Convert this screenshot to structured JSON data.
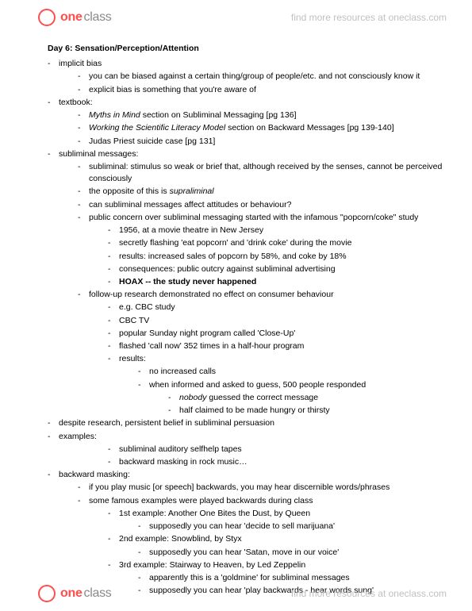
{
  "brand": {
    "one": "one",
    "class": "class",
    "find": "find more resources at oneclass.com"
  },
  "title": "Day 6: Sensation/Perception/Attention",
  "notes": [
    {
      "lvl": 0,
      "t": "implicit bias"
    },
    {
      "lvl": 1,
      "t": "you can be biased against a certain thing/group of people/etc. and not consciously know it"
    },
    {
      "lvl": 1,
      "t": "explicit bias is something that you're aware of"
    },
    {
      "lvl": 0,
      "t": "textbook:"
    },
    {
      "lvl": 1,
      "pre_i": "Myths in Mind",
      "t": " section on Subliminal Messaging [pg 136]"
    },
    {
      "lvl": 1,
      "pre_i": "Working the Scientific Literacy Model",
      "t": " section on Backward Messages [pg 139-140]"
    },
    {
      "lvl": 1,
      "t": "Judas Priest suicide case [pg 131]"
    },
    {
      "lvl": 0,
      "t": "subliminal messages:"
    },
    {
      "lvl": 1,
      "t": "subliminal: stimulus so weak or brief that, although received by the senses, cannot be perceived consciously"
    },
    {
      "lvl": 1,
      "t": "the opposite of this is ",
      "post_i": "supraliminal"
    },
    {
      "lvl": 1,
      "t": "can subliminal messages affect attitudes or behaviour?"
    },
    {
      "lvl": 1,
      "t": "public concern over subliminal messaging started with the infamous \"popcorn/coke\" study"
    },
    {
      "lvl": 2,
      "t": "1956, at a movie theatre in New Jersey"
    },
    {
      "lvl": 2,
      "t": "secretly flashing 'eat popcorn' and 'drink coke' during the movie"
    },
    {
      "lvl": 2,
      "t": "results: increased sales of popcorn by 58%, and coke by 18%"
    },
    {
      "lvl": 2,
      "t": "consequences: public outcry against subliminal advertising"
    },
    {
      "lvl": 2,
      "bold": true,
      "t": "HOAX -- the study never happened"
    },
    {
      "lvl": 1,
      "t": "follow-up research demonstrated no effect on consumer behaviour"
    },
    {
      "lvl": 2,
      "t": "e.g. CBC study"
    },
    {
      "lvl": 2,
      "t": "CBC TV"
    },
    {
      "lvl": 2,
      "t": "popular Sunday night program called 'Close-Up'"
    },
    {
      "lvl": 2,
      "t": "flashed 'call now' 352 times in a half-hour program"
    },
    {
      "lvl": 2,
      "t": "results:"
    },
    {
      "lvl": 3,
      "t": "no increased calls"
    },
    {
      "lvl": 3,
      "t": "when informed and asked to guess, 500 people responded"
    },
    {
      "lvl": 4,
      "pre_i": "nobody",
      "t": " guessed the correct message"
    },
    {
      "lvl": 4,
      "t": "half claimed to be made hungry or thirsty"
    },
    {
      "lvl": 0,
      "t": "despite research, persistent belief in subliminal persuasion"
    },
    {
      "lvl": 0,
      "t": "examples:"
    },
    {
      "lvl": 2,
      "t": "subliminal auditory selfhelp tapes"
    },
    {
      "lvl": 2,
      "t": "backward masking in rock music…"
    },
    {
      "lvl": 0,
      "t": "backward masking:"
    },
    {
      "lvl": 1,
      "t": "if you play music [or speech] backwards, you may hear discernible words/phrases"
    },
    {
      "lvl": 1,
      "t": "some famous examples were played backwards during class"
    },
    {
      "lvl": 2,
      "t": "1st example:  Another One Bites the Dust, by Queen"
    },
    {
      "lvl": 3,
      "t": "supposedly you can hear 'decide to sell marijuana'"
    },
    {
      "lvl": 2,
      "t": "2nd example: Snowblind, by Styx"
    },
    {
      "lvl": 3,
      "t": "supposedly you can hear 'Satan, move in our voice'"
    },
    {
      "lvl": 2,
      "t": "3rd example: Stairway to Heaven, by Led Zeppelin"
    },
    {
      "lvl": 3,
      "t": "apparently this is a 'goldmine' for subliminal messages"
    },
    {
      "lvl": 3,
      "t": "supposedly you can hear 'play backwards - hear words sung'"
    }
  ]
}
